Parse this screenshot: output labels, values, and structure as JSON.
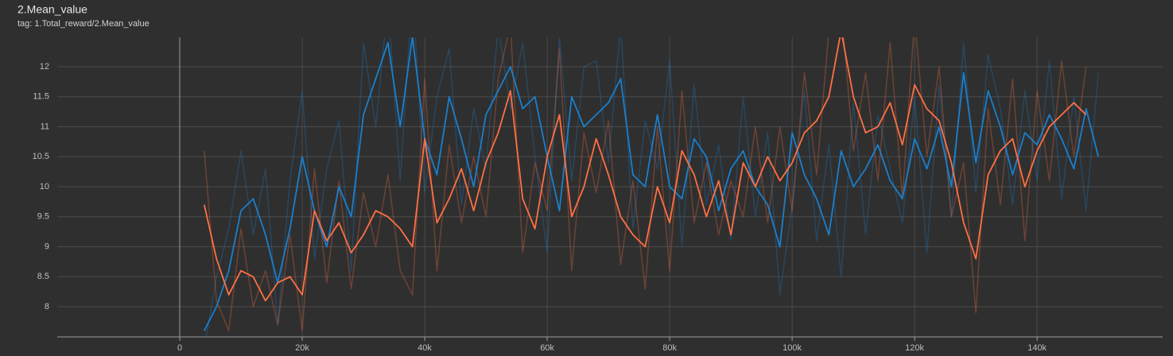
{
  "chart_data": {
    "type": "line",
    "title": "2.Mean_value",
    "subtitle": "tag: 1.Total_reward/2.Mean_value",
    "x": [
      4000,
      6000,
      8000,
      10000,
      12000,
      14000,
      16000,
      18000,
      20000,
      22000,
      24000,
      26000,
      28000,
      30000,
      32000,
      34000,
      36000,
      38000,
      40000,
      42000,
      44000,
      46000,
      48000,
      50000,
      52000,
      54000,
      56000,
      58000,
      60000,
      62000,
      64000,
      66000,
      68000,
      70000,
      72000,
      74000,
      76000,
      78000,
      80000,
      82000,
      84000,
      86000,
      88000,
      90000,
      92000,
      94000,
      96000,
      98000,
      100000,
      102000,
      104000,
      106000,
      108000,
      110000,
      112000,
      114000,
      116000,
      118000,
      120000,
      122000,
      124000,
      126000,
      128000,
      130000,
      132000,
      134000,
      136000,
      138000,
      140000,
      142000,
      144000,
      146000,
      148000,
      150000
    ],
    "series": [
      {
        "color": "#1a7fcc",
        "alpha": 0.3,
        "values": [
          7.3,
          8.5,
          9.3,
          10.6,
          9.2,
          10.3,
          7.7,
          10.1,
          11.6,
          8.8,
          10.3,
          11.1,
          8.6,
          12.4,
          11.0,
          13.1,
          10.1,
          13.3,
          9.9,
          11.5,
          12.3,
          9.7,
          11.3,
          10.3,
          12.7,
          11.3,
          12.4,
          10.5,
          8.9,
          12.5,
          10.1,
          12.0,
          12.1,
          10.4,
          12.7,
          9.3,
          11.1,
          10.3,
          12.1,
          9.0,
          11.7,
          9.7,
          10.7,
          9.1,
          11.5,
          9.5,
          10.9,
          8.2,
          9.7,
          11.6,
          9.1,
          10.7,
          8.5,
          11.4,
          9.2,
          11.2,
          10.3,
          9.4,
          11.5,
          8.9,
          11.7,
          9.5,
          12.4,
          9.9,
          12.2,
          11.3,
          9.7,
          11.6,
          10.1,
          12.1,
          9.8,
          11.5,
          9.6,
          11.9
        ]
      },
      {
        "color": "#ff7043",
        "alpha": 0.3,
        "values": [
          10.6,
          8.1,
          7.6,
          9.3,
          8.0,
          8.6,
          7.7,
          9.2,
          7.6,
          10.3,
          8.4,
          10.1,
          8.3,
          9.9,
          9.0,
          10.2,
          8.6,
          8.2,
          11.8,
          8.6,
          10.7,
          9.4,
          10.5,
          9.5,
          11.8,
          12.7,
          8.9,
          10.4,
          9.6,
          12.3,
          8.6,
          10.9,
          9.9,
          11.1,
          8.7,
          10.1,
          8.3,
          11.0,
          8.6,
          11.6,
          9.4,
          10.4,
          9.2,
          10.1,
          9.5,
          11.0,
          9.4,
          11.0,
          9.6,
          11.9,
          10.2,
          12.6,
          13.0,
          10.6,
          11.9,
          10.1,
          12.4,
          9.8,
          12.8,
          10.5,
          12.0,
          9.5,
          10.4,
          7.9,
          11.3,
          9.7,
          11.8,
          9.1,
          11.6,
          10.1,
          12.1,
          10.5,
          12.0,
          null
        ]
      },
      {
        "color": "#1a7fcc",
        "alpha": 1,
        "values": [
          7.6,
          8.0,
          8.6,
          9.6,
          9.8,
          9.2,
          8.4,
          9.3,
          10.5,
          9.6,
          9.0,
          10.0,
          9.5,
          11.2,
          11.8,
          12.4,
          11.0,
          12.5,
          10.8,
          10.2,
          11.5,
          10.8,
          10.0,
          11.2,
          11.6,
          12.0,
          11.3,
          11.5,
          10.5,
          9.6,
          11.5,
          11.0,
          11.2,
          11.4,
          11.8,
          10.2,
          10.0,
          11.2,
          10.0,
          9.8,
          10.8,
          10.5,
          9.6,
          10.3,
          10.6,
          10.0,
          9.7,
          9.0,
          10.9,
          10.2,
          9.8,
          9.2,
          10.6,
          10.0,
          10.3,
          10.7,
          10.1,
          9.8,
          10.8,
          10.3,
          11.0,
          10.0,
          11.9,
          10.4,
          11.6,
          11.0,
          10.2,
          10.9,
          10.7,
          11.2,
          10.8,
          10.3,
          11.3,
          10.5
        ]
      },
      {
        "color": "#ff7043",
        "alpha": 1,
        "values": [
          9.7,
          8.8,
          8.2,
          8.6,
          8.5,
          8.1,
          8.4,
          8.5,
          8.2,
          9.6,
          9.1,
          9.4,
          8.9,
          9.2,
          9.6,
          9.5,
          9.3,
          9.0,
          10.8,
          9.4,
          9.8,
          10.3,
          9.6,
          10.4,
          10.9,
          11.6,
          9.8,
          9.3,
          10.5,
          11.2,
          9.5,
          10.0,
          10.8,
          10.2,
          9.5,
          9.2,
          9.0,
          10.0,
          9.4,
          10.6,
          10.2,
          9.5,
          10.1,
          9.2,
          10.4,
          10.0,
          10.5,
          10.1,
          10.4,
          10.9,
          11.1,
          11.5,
          12.6,
          11.5,
          10.9,
          11.0,
          11.4,
          10.7,
          11.7,
          11.3,
          11.1,
          10.4,
          9.4,
          8.8,
          10.2,
          10.6,
          10.8,
          10.0,
          10.6,
          11.0,
          11.2,
          11.4,
          11.2,
          null
        ]
      }
    ],
    "xlim": [
      -20000,
      160500
    ],
    "ylim": [
      7.497,
      12.49
    ],
    "xticks": [
      {
        "value": 0,
        "label": "0"
      },
      {
        "value": 20000,
        "label": "20k"
      },
      {
        "value": 40000,
        "label": "40k"
      },
      {
        "value": 60000,
        "label": "60k"
      },
      {
        "value": 80000,
        "label": "80k"
      },
      {
        "value": 100000,
        "label": "100k"
      },
      {
        "value": 120000,
        "label": "120k"
      },
      {
        "value": 140000,
        "label": "140k"
      }
    ],
    "yticks": [
      8,
      8.5,
      9,
      9.5,
      10,
      10.5,
      11,
      11.5,
      12
    ],
    "grid": true
  }
}
